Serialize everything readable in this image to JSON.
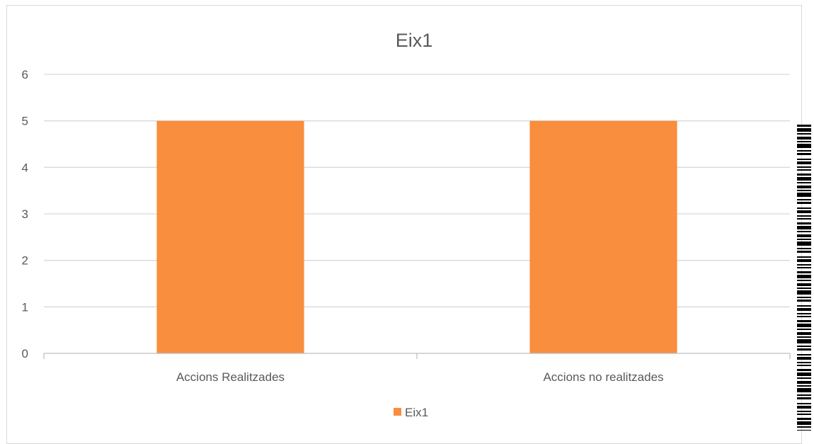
{
  "chart_data": {
    "type": "bar",
    "title": "Eix1",
    "categories": [
      "Accions Realitzades",
      "Accions no realitzades"
    ],
    "series": [
      {
        "name": "Eix1",
        "values": [
          5,
          5
        ]
      }
    ],
    "ylim": [
      0,
      6
    ],
    "yticks": [
      "0",
      "1",
      "2",
      "3",
      "4",
      "5",
      "6"
    ],
    "xlabel": "",
    "ylabel": "",
    "grid": true,
    "legend": "bottom",
    "bar_color": "#F98E3E",
    "grid_color": "#d9d9d9",
    "text_color": "#595959"
  }
}
